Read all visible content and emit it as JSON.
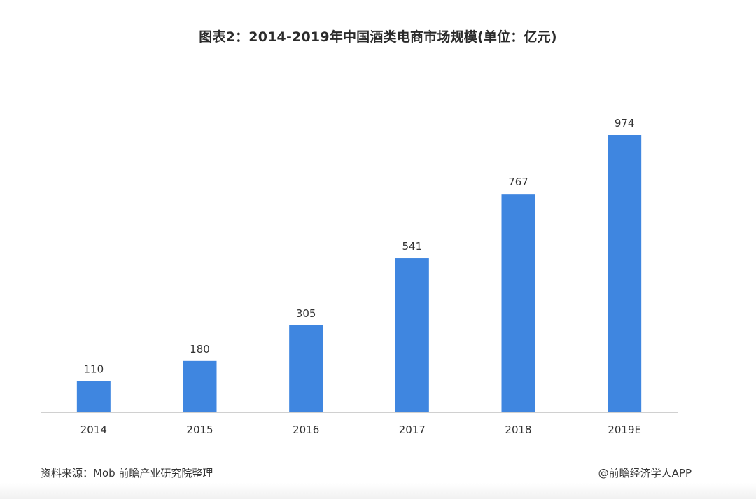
{
  "chart_data": {
    "type": "bar",
    "title": "图表2：2014-2019年中国酒类电商市场规模(单位：亿元)",
    "xlabel": "",
    "ylabel": "",
    "categories": [
      "2014",
      "2015",
      "2016",
      "2017",
      "2018",
      "2019E"
    ],
    "values": [
      110,
      180,
      305,
      541,
      767,
      974
    ],
    "ylim": [
      0,
      974
    ],
    "grid": false,
    "legend": "none",
    "bar_color": "#3f86e0",
    "label_color": "#333333",
    "axis_color": "#d0d0d0"
  },
  "footer": {
    "source": "资料来源：Mob 前瞻产业研究院整理",
    "credit": "@前瞻经济学人APP"
  }
}
